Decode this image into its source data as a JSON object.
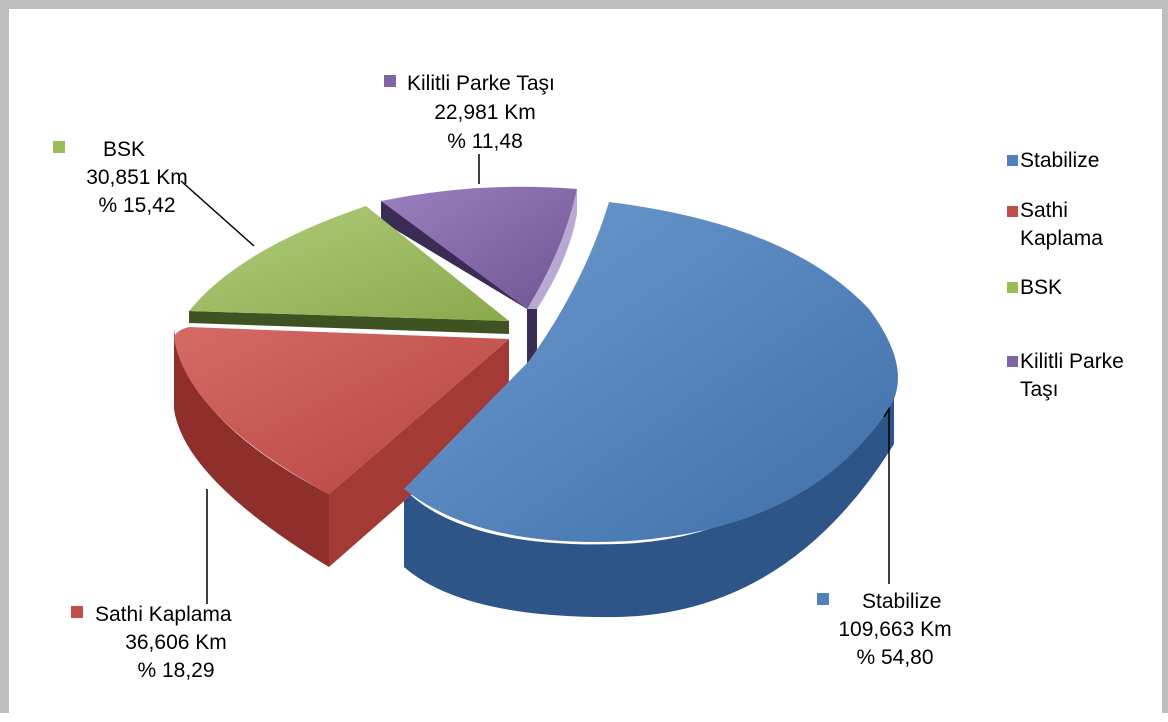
{
  "chart_data": {
    "type": "pie",
    "three_d": true,
    "exploded": true,
    "unit": "Km",
    "slices": [
      {
        "name": "Stabilize",
        "value": 109.663,
        "value_text": "109,663 Km",
        "percent_text": "% 54,80",
        "color": "#4f81bd"
      },
      {
        "name": "Sathi Kaplama",
        "value": 36.606,
        "value_text": "36,606 Km",
        "percent_text": "% 18,29",
        "color": "#c0504d"
      },
      {
        "name": "BSK",
        "value": 30.851,
        "value_text": "30,851 Km",
        "percent_text": "% 15,42",
        "color": "#9bbb59"
      },
      {
        "name": "Kilitli Parke Taşı",
        "value": 22.981,
        "value_text": "22,981 Km",
        "percent_text": "% 11,48",
        "color": "#8064a2"
      }
    ],
    "legend": {
      "position": "right",
      "entries": [
        {
          "text_lines": [
            "Stabilize"
          ],
          "color": "#4f81bd"
        },
        {
          "text_lines": [
            "Sathi",
            "Kaplama"
          ],
          "color": "#c0504d"
        },
        {
          "text_lines": [
            "BSK"
          ],
          "color": "#9bbb59"
        },
        {
          "text_lines": [
            "Kilitli Parke",
            "Taşı"
          ],
          "color": "#8064a2"
        }
      ]
    },
    "data_labels": [
      {
        "lines": [
          "Stabilize",
          "109,663 Km",
          "% 54,80"
        ],
        "color": "#4f81bd"
      },
      {
        "lines": [
          "Sathi Kaplama",
          "36,606 Km",
          "% 18,29"
        ],
        "color": "#c0504d"
      },
      {
        "lines": [
          "BSK",
          "30,851 Km",
          "% 15,42"
        ],
        "color": "#9bbb59"
      },
      {
        "lines": [
          "Kilitli Parke Taşı",
          "22,981 Km",
          "% 11,48"
        ],
        "color": "#8064a2"
      }
    ]
  }
}
